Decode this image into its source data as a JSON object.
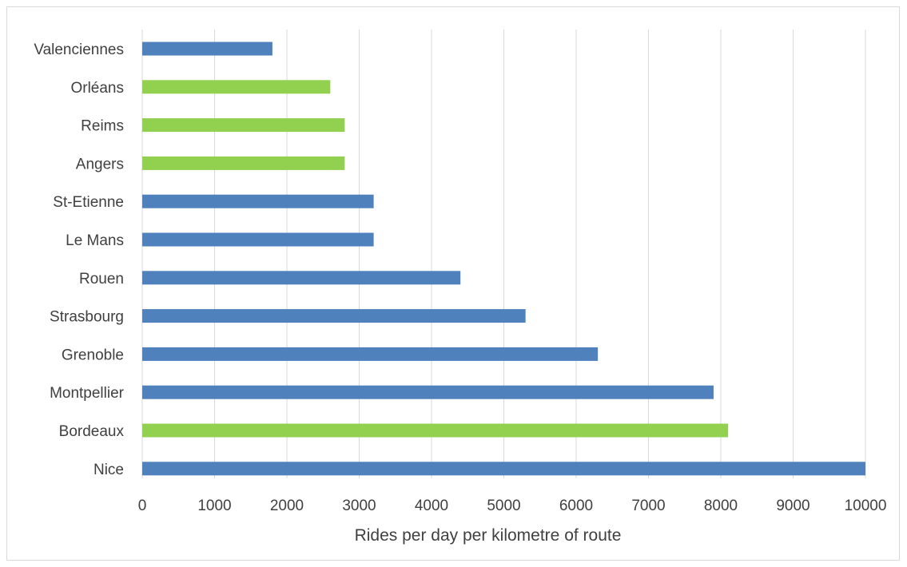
{
  "chart_data": {
    "type": "bar",
    "orientation": "horizontal",
    "categories": [
      "Valenciennes",
      "Orléans",
      "Reims",
      "Angers",
      "St-Etienne",
      "Le Mans",
      "Rouen",
      "Strasbourg",
      "Grenoble",
      "Montpellier",
      "Bordeaux",
      "Nice"
    ],
    "values": [
      1800,
      2600,
      2800,
      2800,
      3200,
      3200,
      4400,
      5300,
      6300,
      7900,
      8100,
      10000
    ],
    "bar_colors": [
      "#4f81bd",
      "#92d050",
      "#92d050",
      "#92d050",
      "#4f81bd",
      "#4f81bd",
      "#4f81bd",
      "#4f81bd",
      "#4f81bd",
      "#4f81bd",
      "#92d050",
      "#4f81bd"
    ],
    "xlabel": "Rides per day per kilometre of route",
    "ylabel": "",
    "title": "",
    "xlim": [
      0,
      10000
    ],
    "xticks": [
      0,
      1000,
      2000,
      3000,
      4000,
      5000,
      6000,
      7000,
      8000,
      9000,
      10000
    ],
    "grid": "vertical",
    "legend": "none"
  },
  "colors": {
    "primary": "#4f81bd",
    "highlight": "#92d050",
    "grid": "#d9d9d9",
    "text": "#404040"
  }
}
